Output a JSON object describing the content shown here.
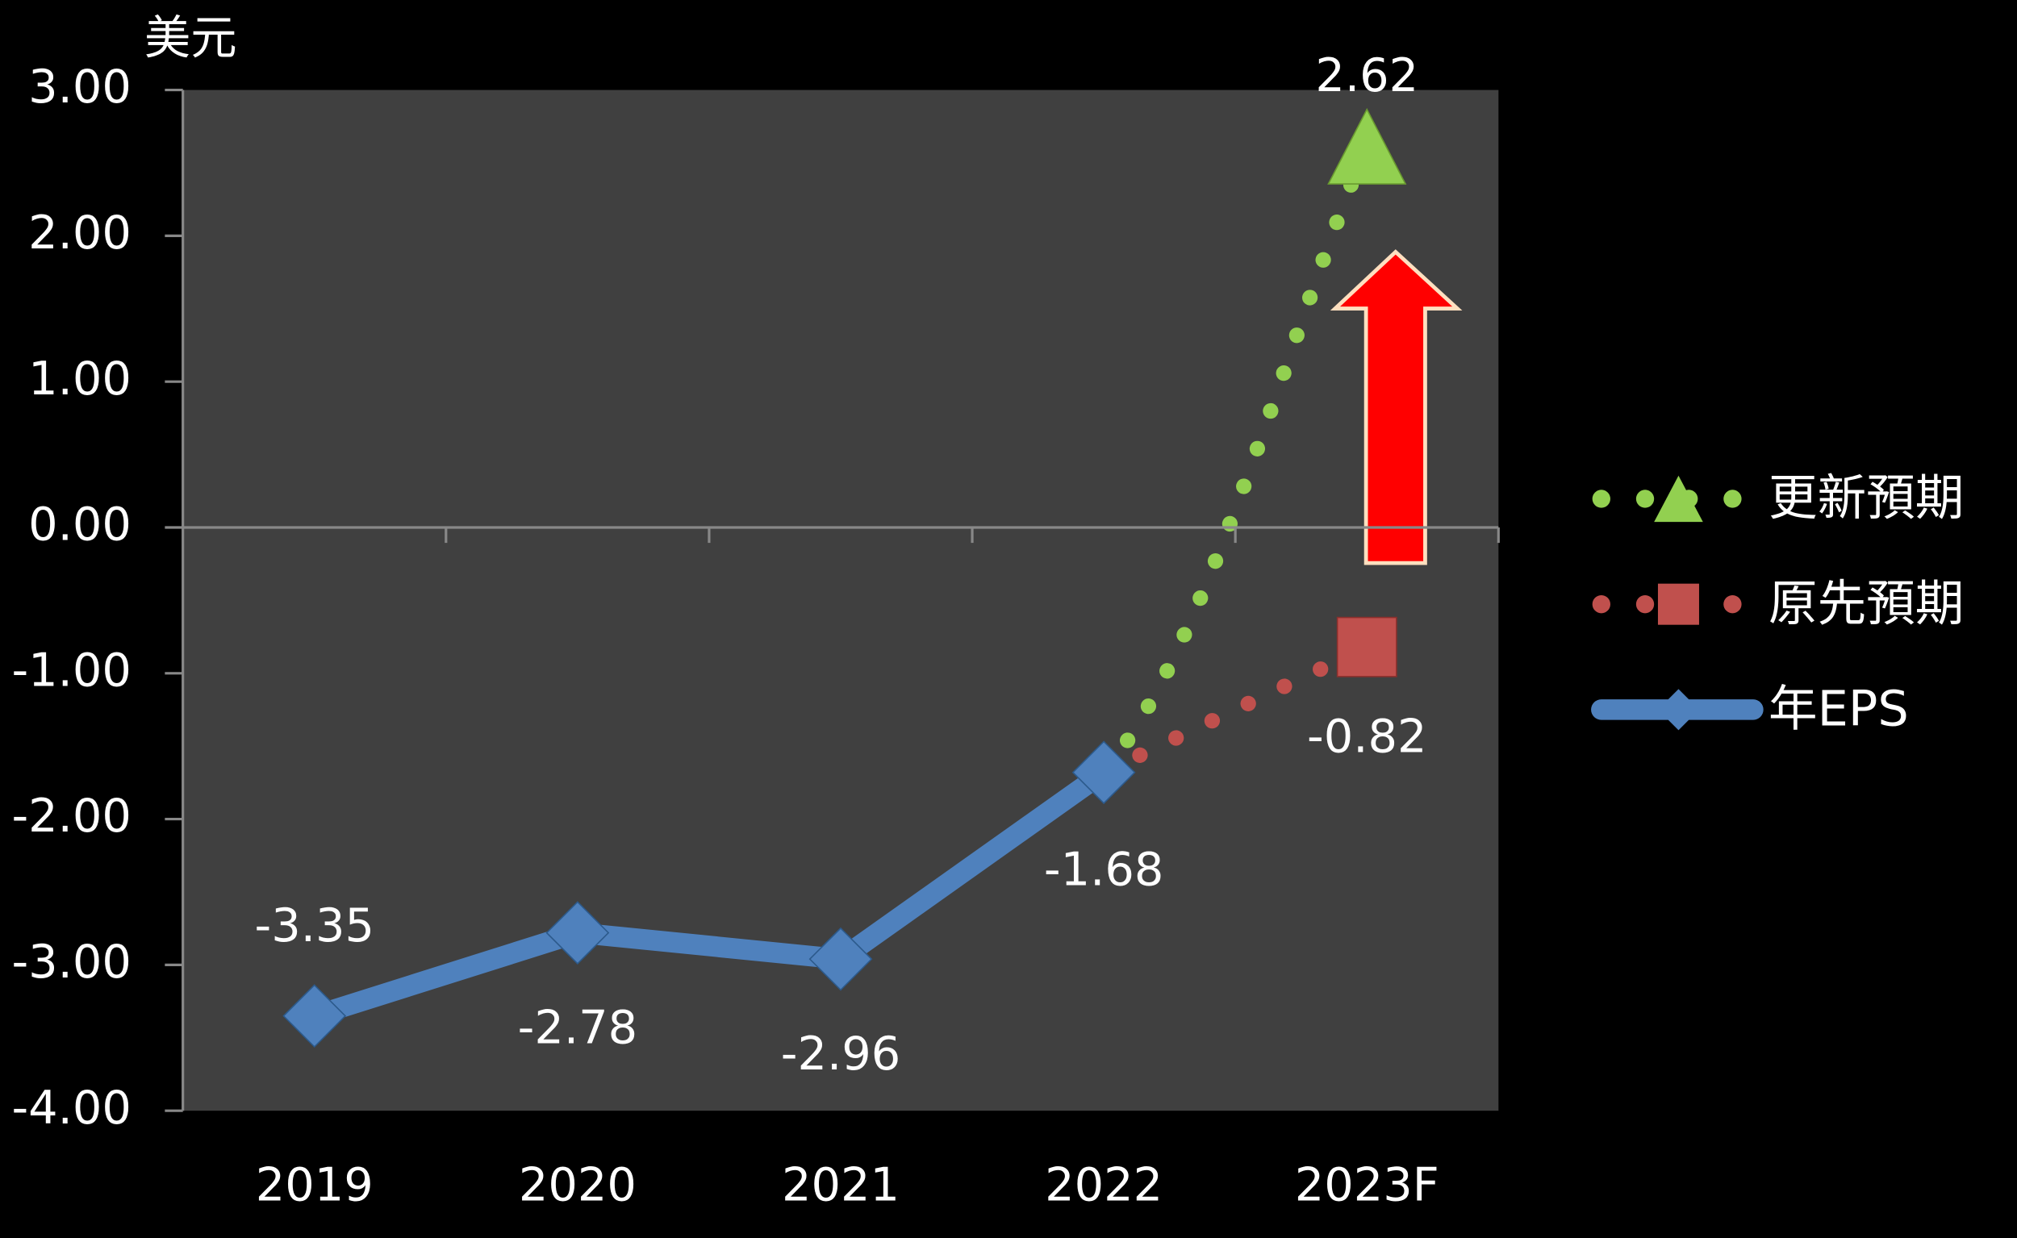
{
  "chart_data": {
    "type": "line",
    "y_label": "美元",
    "categories": [
      "2019",
      "2020",
      "2021",
      "2022",
      "2023F"
    ],
    "series": [
      {
        "name": "更新預期",
        "color": "#92d050",
        "style": "dotted",
        "marker": "triangle",
        "values": [
          null,
          null,
          null,
          -1.68,
          2.62
        ]
      },
      {
        "name": "原先預期",
        "color": "#c0504d",
        "style": "dotted",
        "marker": "square",
        "values": [
          null,
          null,
          null,
          -1.68,
          -0.82
        ]
      },
      {
        "name": "年EPS",
        "color": "#4f81bd",
        "style": "solid",
        "marker": "diamond",
        "values": [
          -3.35,
          -2.78,
          -2.96,
          -1.68,
          null
        ]
      }
    ],
    "ylim": [
      -4,
      3
    ],
    "yticks": [
      {
        "value": -4,
        "label": "-4.00"
      },
      {
        "value": -3,
        "label": "-3.00"
      },
      {
        "value": -2,
        "label": "-2.00"
      },
      {
        "value": -1,
        "label": "-1.00"
      },
      {
        "value": 0,
        "label": "0.00"
      },
      {
        "value": 1,
        "label": "1.00"
      },
      {
        "value": 2,
        "label": "2.00"
      },
      {
        "value": 3,
        "label": "3.00"
      }
    ],
    "grid": false,
    "legend": "right"
  }
}
